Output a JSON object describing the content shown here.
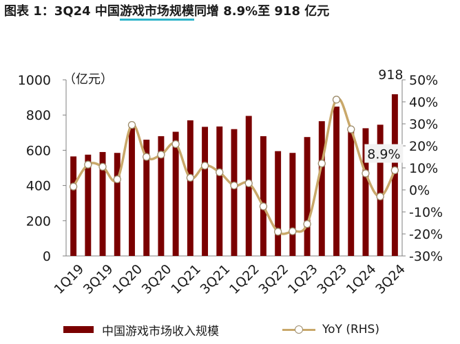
{
  "title": {
    "prefix": "图表 1：3Q24 中国",
    "highlight": "游戏市场规模",
    "suffix": "同增 8.9%至 918 亿元"
  },
  "chart_data": {
    "type": "bar",
    "categories": [
      "1Q19",
      "2Q19",
      "3Q19",
      "4Q19",
      "1Q20",
      "2Q20",
      "3Q20",
      "4Q20",
      "1Q21",
      "2Q21",
      "3Q21",
      "4Q21",
      "1Q22",
      "2Q22",
      "3Q22",
      "4Q22",
      "1Q23",
      "2Q23",
      "3Q23",
      "4Q23",
      "1Q24",
      "2Q24",
      "3Q24"
    ],
    "x_tick_labels": [
      "1Q19",
      "",
      "3Q19",
      "",
      "1Q20",
      "",
      "3Q20",
      "",
      "1Q21",
      "",
      "3Q21",
      "",
      "1Q22",
      "",
      "3Q22",
      "",
      "1Q23",
      "",
      "3Q23",
      "",
      "1Q24",
      "",
      "3Q24"
    ],
    "series": [
      {
        "name": "中国游戏市场收入规模",
        "type": "bar",
        "axis": "left",
        "color": "#7a0000",
        "values": [
          565,
          575,
          590,
          585,
          735,
          660,
          680,
          705,
          770,
          733,
          735,
          720,
          795,
          680,
          595,
          585,
          675,
          765,
          848,
          730,
          725,
          745,
          918
        ]
      },
      {
        "name": "YoY (RHS)",
        "type": "line",
        "axis": "right",
        "color": "#c9a86a",
        "marker": "circle-hollow",
        "values": [
          1.5,
          11.5,
          10.5,
          4.8,
          29.5,
          15.0,
          16.0,
          20.8,
          5.5,
          11.0,
          8.0,
          2.0,
          3.0,
          -7.5,
          -19.0,
          -18.8,
          -15.5,
          12.0,
          41.0,
          27.5,
          7.5,
          -3.0,
          8.9
        ]
      }
    ],
    "y_left": {
      "label": "（亿元）",
      "lim": [
        0,
        1000
      ],
      "ticks": [
        "0",
        "200",
        "400",
        "600",
        "800",
        "1000"
      ]
    },
    "y_right": {
      "lim": [
        -30,
        50
      ],
      "ticks": [
        "-30%",
        "-20%",
        "-10%",
        "0%",
        "10%",
        "20%",
        "30%",
        "40%",
        "50%"
      ]
    },
    "annotations": [
      {
        "text": "918",
        "target": "bar",
        "index": 22
      },
      {
        "text": "8.9%",
        "target": "line",
        "index": 22
      }
    ],
    "grid": false,
    "legend_position": "bottom"
  }
}
